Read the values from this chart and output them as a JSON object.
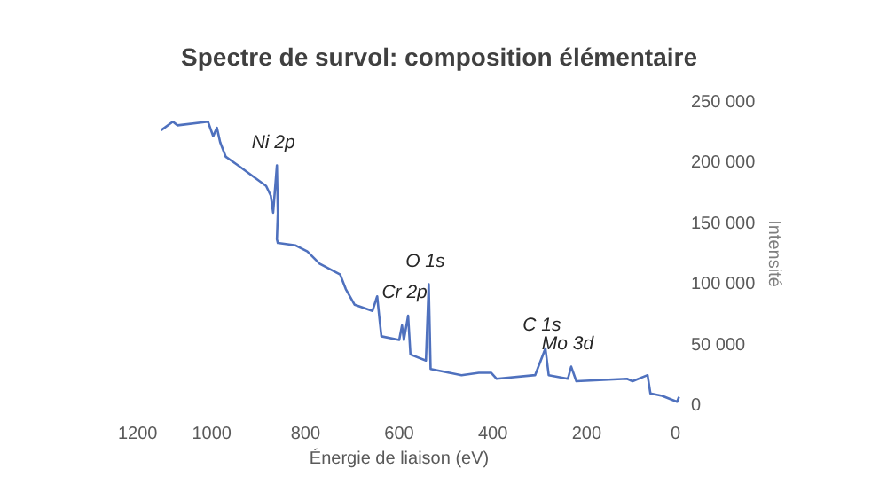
{
  "chart_data": {
    "type": "line",
    "title": "Spectre de survol: composition élémentaire",
    "xlabel": "Énergie de liaison (eV)",
    "ylabel": "Intensité",
    "x": [
      1106,
      1081,
      1071,
      1006,
      995,
      987,
      980,
      968,
      942,
      882,
      872,
      867,
      859,
      857,
      859,
      857,
      819,
      794,
      768,
      724,
      712,
      693,
      655,
      645,
      640,
      636,
      598,
      592,
      588,
      579,
      574,
      541,
      535,
      531,
      491,
      465,
      428,
      402,
      390,
      308,
      286,
      279,
      238,
      231,
      220,
      112,
      100,
      68,
      62,
      37,
      5,
      1
    ],
    "series": [
      {
        "color": "#4f71be",
        "values": [
          226000,
          233000,
          230000,
          233000,
          221000,
          228000,
          216000,
          204000,
          197000,
          180000,
          172000,
          158000,
          197000,
          158000,
          136000,
          133000,
          131000,
          126000,
          116000,
          107000,
          95000,
          82000,
          77000,
          89000,
          70000,
          56000,
          53000,
          65000,
          53000,
          73000,
          41000,
          36000,
          99000,
          29000,
          26000,
          24000,
          26000,
          26000,
          21000,
          24000,
          46000,
          24000,
          21000,
          31000,
          19000,
          21000,
          19000,
          24000,
          9000,
          7000,
          2000,
          6000
        ]
      }
    ],
    "xlim": [
      1200,
      0
    ],
    "xticks": [
      1200,
      1000,
      800,
      600,
      400,
      200,
      0
    ],
    "ylim": [
      0,
      250000
    ],
    "yticks": [
      {
        "value": 0,
        "label": "0"
      },
      {
        "value": 50000,
        "label": "50 000"
      },
      {
        "value": 100000,
        "label": "100 000"
      },
      {
        "value": 150000,
        "label": "150 000"
      },
      {
        "value": 200000,
        "label": "200 000"
      },
      {
        "value": 250000,
        "label": "250 000"
      }
    ],
    "annotations": [
      {
        "text": "Ni 2p",
        "x": 859,
        "y": 197000
      },
      {
        "text": "Cr 2p",
        "x": 579,
        "y": 73000
      },
      {
        "text": "O 1s",
        "x": 535,
        "y": 99000
      },
      {
        "text": "C 1s",
        "x": 286,
        "y": 46000
      },
      {
        "text": "Mo 3d",
        "x": 231,
        "y": 31000
      }
    ],
    "grid": false
  }
}
